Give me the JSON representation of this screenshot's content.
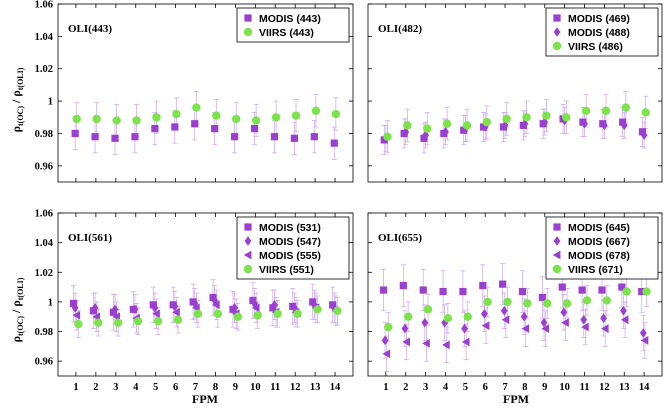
{
  "figure": {
    "xlabel": "FPM",
    "ylabel_top_main": "ρ",
    "ylabel_top_sub1": "t(OC)",
    "ylabel_top_sep": " / ρ",
    "ylabel_top_sub2": "t(OLI)",
    "ylabel_bot_main": "ρ",
    "ylabel_bot_sub1": "t(OC)",
    "ylabel_bot_sep": " / ρ",
    "ylabel_bot_sub2": "t(OLI)"
  },
  "colors": {
    "modis": "#9b3fd1",
    "viirs": "#7de34a",
    "errorbar": "#c9a6e8"
  },
  "chart_data": [
    {
      "type": "scatter",
      "band_label": "OLI(443)",
      "x": [
        1,
        2,
        3,
        4,
        5,
        6,
        7,
        8,
        9,
        10,
        11,
        12,
        13,
        14
      ],
      "ylim": [
        0.95,
        1.06
      ],
      "yticks": [
        "0.96",
        "0.98",
        "1",
        "1.02",
        "1.04",
        "1.06"
      ],
      "xticks": [],
      "series": [
        {
          "name": "MODIS (443)",
          "marker": "square",
          "sensor": "modis",
          "values": [
            0.98,
            0.978,
            0.977,
            0.978,
            0.983,
            0.984,
            0.986,
            0.983,
            0.978,
            0.983,
            0.978,
            0.977,
            0.978,
            0.974
          ]
        },
        {
          "name": "VIIRS (443)",
          "marker": "circle",
          "sensor": "viirs",
          "values": [
            0.989,
            0.989,
            0.988,
            0.988,
            0.99,
            0.992,
            0.996,
            0.991,
            0.989,
            0.988,
            0.99,
            0.991,
            0.994,
            0.992
          ]
        }
      ]
    },
    {
      "type": "scatter",
      "band_label": "OLI(482)",
      "x": [
        1,
        2,
        3,
        4,
        5,
        6,
        7,
        8,
        9,
        10,
        11,
        12,
        13,
        14
      ],
      "ylim": [
        0.95,
        1.06
      ],
      "yticks": [],
      "xticks": [],
      "series": [
        {
          "name": "MODIS (469)",
          "marker": "square",
          "sensor": "modis",
          "values": [
            0.976,
            0.98,
            0.977,
            0.98,
            0.982,
            0.984,
            0.984,
            0.985,
            0.986,
            0.989,
            0.987,
            0.986,
            0.987,
            0.981
          ]
        },
        {
          "name": "MODIS (488)",
          "marker": "diamond",
          "sensor": "modis",
          "values": [
            0.977,
            0.981,
            0.979,
            0.981,
            0.983,
            0.984,
            0.985,
            0.986,
            0.987,
            0.988,
            0.986,
            0.985,
            0.985,
            0.979
          ]
        },
        {
          "name": "VIIRS (486)",
          "marker": "circle",
          "sensor": "viirs",
          "values": [
            0.978,
            0.985,
            0.983,
            0.986,
            0.985,
            0.987,
            0.989,
            0.99,
            0.991,
            0.99,
            0.994,
            0.994,
            0.996,
            0.993
          ]
        }
      ]
    },
    {
      "type": "scatter",
      "band_label": "OLI(561)",
      "x": [
        1,
        2,
        3,
        4,
        5,
        6,
        7,
        8,
        9,
        10,
        11,
        12,
        13,
        14
      ],
      "ylim": [
        0.95,
        1.06
      ],
      "yticks": [
        "0.96",
        "0.98",
        "1",
        "1.02",
        "1.04",
        "1.06"
      ],
      "xticks": [
        "1",
        "2",
        "3",
        "4",
        "5",
        "6",
        "7",
        "8",
        "9",
        "10",
        "11",
        "12",
        "13",
        "14"
      ],
      "series": [
        {
          "name": "MODIS (531)",
          "marker": "square",
          "sensor": "modis",
          "values": [
            0.999,
            0.994,
            0.993,
            0.995,
            0.998,
            0.998,
            1.0,
            1.003,
            0.995,
            1.001,
            0.996,
            0.997,
            1.0,
            0.998
          ]
        },
        {
          "name": "MODIS (547)",
          "marker": "diamond",
          "sensor": "modis",
          "values": [
            0.996,
            0.996,
            0.995,
            0.995,
            0.996,
            0.997,
            0.999,
            1.001,
            0.996,
            0.999,
            0.998,
            0.996,
            0.998,
            0.996
          ]
        },
        {
          "name": "MODIS (555)",
          "marker": "triangle-left",
          "sensor": "modis",
          "values": [
            0.991,
            0.99,
            0.99,
            0.989,
            0.992,
            0.993,
            0.996,
            0.998,
            0.992,
            0.996,
            0.993,
            0.993,
            0.996,
            0.994
          ]
        },
        {
          "name": "VIIRS (551)",
          "marker": "circle",
          "sensor": "viirs",
          "values": [
            0.985,
            0.986,
            0.986,
            0.987,
            0.987,
            0.988,
            0.992,
            0.992,
            0.99,
            0.991,
            0.992,
            0.992,
            0.995,
            0.994
          ]
        }
      ]
    },
    {
      "type": "scatter",
      "band_label": "OLI(655)",
      "x": [
        1,
        2,
        3,
        4,
        5,
        6,
        7,
        8,
        9,
        10,
        11,
        12,
        13,
        14
      ],
      "ylim": [
        0.95,
        1.06
      ],
      "yticks": [],
      "xticks": [
        "1",
        "2",
        "3",
        "4",
        "5",
        "6",
        "7",
        "8",
        "9",
        "10",
        "11",
        "12",
        "13",
        "14"
      ],
      "series": [
        {
          "name": "MODIS (645)",
          "marker": "square",
          "sensor": "modis",
          "values": [
            1.008,
            1.011,
            1.008,
            1.007,
            1.007,
            1.011,
            1.012,
            1.007,
            1.003,
            1.01,
            1.008,
            1.008,
            1.01,
            1.007
          ]
        },
        {
          "name": "MODIS (667)",
          "marker": "diamond",
          "sensor": "modis",
          "values": [
            0.974,
            0.982,
            0.986,
            0.986,
            0.982,
            0.992,
            0.994,
            0.99,
            0.986,
            0.993,
            0.988,
            0.989,
            0.994,
            0.979
          ]
        },
        {
          "name": "MODIS (678)",
          "marker": "triangle-left",
          "sensor": "modis",
          "values": [
            0.965,
            0.973,
            0.972,
            0.971,
            0.973,
            0.984,
            0.988,
            0.982,
            0.982,
            0.986,
            0.983,
            0.982,
            0.988,
            0.974
          ]
        },
        {
          "name": "VIIRS (671)",
          "marker": "circle",
          "sensor": "viirs",
          "values": [
            0.983,
            0.99,
            0.995,
            0.989,
            0.99,
            1.0,
            1.0,
            0.999,
            0.999,
            0.999,
            1.001,
            1.001,
            1.007,
            1.007
          ]
        }
      ]
    }
  ]
}
